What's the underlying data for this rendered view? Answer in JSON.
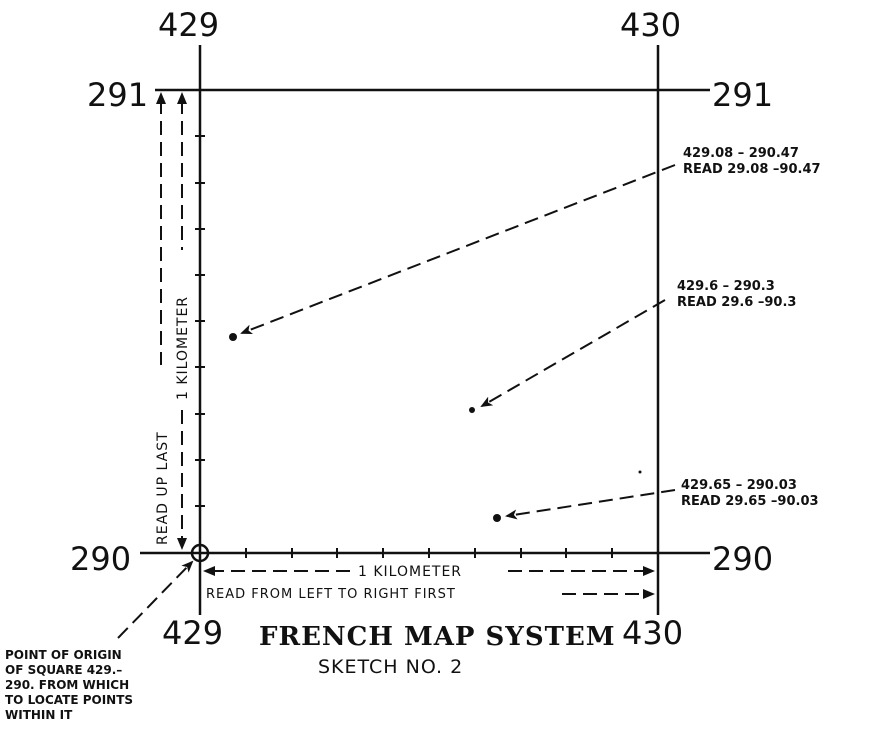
{
  "grid": {
    "top_left_label": "429",
    "top_right_label": "430",
    "bottom_left_label": "429",
    "bottom_right_label": "430",
    "left_top_label": "291",
    "right_top_label": "291",
    "left_bottom_label": "290",
    "right_bottom_label": "290"
  },
  "annotations": {
    "point_a": {
      "line1": "429.08 – 290.47",
      "line2": "READ 29.08 –90.47"
    },
    "point_b": {
      "line1": "429.6 – 290.3",
      "line2": "READ 29.6 –90.3"
    },
    "point_c": {
      "line1": "429.65 – 290.03",
      "line2": "READ 29.65 –90.03"
    }
  },
  "axis_notes": {
    "horizontal_measure": "1 KILOMETER",
    "horizontal_instruction": "READ FROM LEFT TO RIGHT FIRST",
    "vertical_measure": "1 KILOMETER",
    "vertical_instruction": "READ UP LAST"
  },
  "origin_note": {
    "line1": "POINT OF ORIGIN",
    "line2": "OF SQUARE 429.–",
    "line3": "290. FROM WHICH",
    "line4": "TO LOCATE POINTS",
    "line5": "WITHIN IT"
  },
  "title": "FRENCH MAP SYSTEM",
  "subtitle": "SKETCH NO. 2"
}
